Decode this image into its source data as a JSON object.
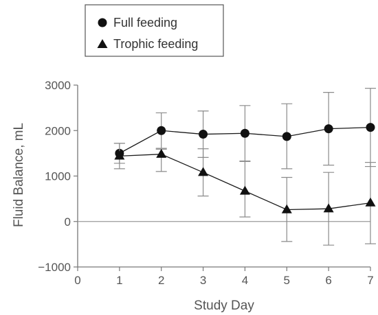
{
  "chart_data": {
    "type": "line",
    "title": "",
    "xlabel": "Study Day",
    "ylabel": "Fluid Balance, mL",
    "xlim": [
      0,
      7
    ],
    "ylim": [
      -1000,
      3000
    ],
    "x_ticks": [
      0,
      1,
      2,
      3,
      4,
      5,
      6,
      7
    ],
    "y_ticks": [
      -1000,
      0,
      1000,
      2000,
      3000
    ],
    "x_tick_labels": [
      "0",
      "1",
      "2",
      "3",
      "4",
      "5",
      "6",
      "7"
    ],
    "y_tick_labels": [
      "−1000",
      "0",
      "1000",
      "2000",
      "3000"
    ],
    "zero_reference_line": true,
    "grid": false,
    "legend_position": "top-left",
    "series": [
      {
        "name": "Full feeding",
        "marker": "circle",
        "color": "#111111",
        "x": [
          1,
          2,
          3,
          4,
          5,
          6,
          7
        ],
        "y": [
          1500,
          2000,
          1920,
          1940,
          1870,
          2040,
          2070
        ],
        "error_low": [
          1280,
          1610,
          1410,
          1330,
          1160,
          1240,
          1210
        ],
        "error_high": [
          1720,
          2390,
          2430,
          2550,
          2590,
          2840,
          2930
        ]
      },
      {
        "name": "Trophic feeding",
        "marker": "triangle",
        "color": "#111111",
        "x": [
          1,
          2,
          3,
          4,
          5,
          6,
          7
        ],
        "y": [
          1440,
          1480,
          1080,
          670,
          260,
          280,
          410
        ],
        "error_low": [
          1160,
          1100,
          560,
          100,
          -440,
          -520,
          -490
        ],
        "error_high": [
          1720,
          1590,
          1600,
          1320,
          970,
          1080,
          1300
        ]
      }
    ],
    "colors": {
      "axis": "#777777",
      "errorbar": "#8a8a8a",
      "line": "#1a1a1a",
      "zero_line": "#9a9a9a",
      "legend_border": "#555555"
    }
  }
}
